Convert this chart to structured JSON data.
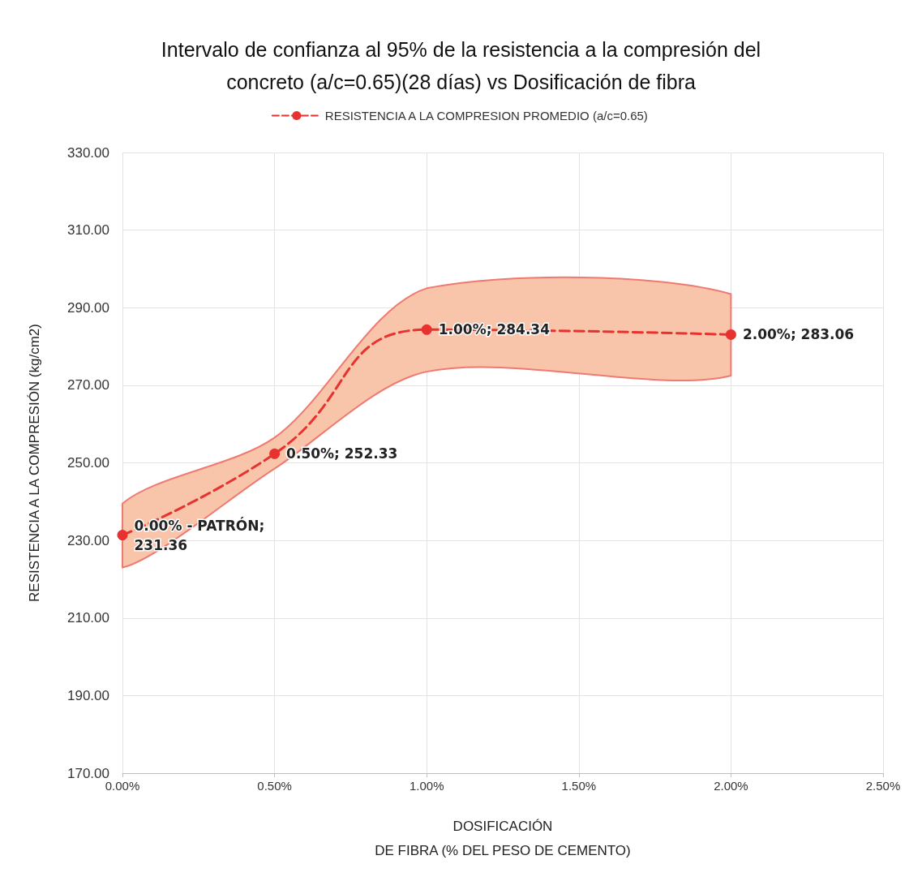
{
  "chart_data": {
    "type": "line",
    "title": "Intervalo de confianza al 95% de la resistencia a la compresión del\nconcreto (a/c=0.65)(28 días) vs Dosificación de fibra",
    "xlabel": "DOSIFICACIÓN\nDE FIBRA (% DEL PESO DE CEMENTO)",
    "ylabel": "RESISTENCIA A LA COMPRESIÓN (kg/cm2)",
    "x": [
      0,
      0.5,
      1,
      2
    ],
    "series": [
      {
        "name": "RESISTENCIA A LA COMPRESION PROMEDIO (a/c=0.65)",
        "color": "#e8322f",
        "values": [
          231.36,
          252.33,
          284.34,
          283.06
        ],
        "lower": [
          223,
          248.5,
          273.5,
          272.5
        ],
        "upper": [
          239.5,
          256.5,
          295,
          293.5
        ],
        "value_labels": [
          "0.00% - PATRÓN;\n231.36",
          "0.50%; 252.33",
          "1.00%; 284.34",
          "2.00%; 283.06"
        ]
      }
    ],
    "xlim": [
      0,
      2.5
    ],
    "xticks": [
      {
        "value": 0,
        "label": "0.00%"
      },
      {
        "value": 0.5,
        "label": "0.50%"
      },
      {
        "value": 1,
        "label": "1.00%"
      },
      {
        "value": 1.5,
        "label": "1.50%"
      },
      {
        "value": 2,
        "label": "2.00%"
      },
      {
        "value": 2.5,
        "label": "2.50%"
      }
    ],
    "ylim": [
      170,
      330
    ],
    "yticks": [
      {
        "value": 170,
        "label": "170.00"
      },
      {
        "value": 190,
        "label": "190.00"
      },
      {
        "value": 210,
        "label": "210.00"
      },
      {
        "value": 230,
        "label": "230.00"
      },
      {
        "value": 250,
        "label": "250.00"
      },
      {
        "value": 270,
        "label": "270.00"
      },
      {
        "value": 290,
        "label": "290.00"
      },
      {
        "value": 310,
        "label": "310.00"
      },
      {
        "value": 330,
        "label": "330.00"
      }
    ],
    "grid": true,
    "legend": "top",
    "marker": "circle",
    "line_style": "dashed"
  }
}
